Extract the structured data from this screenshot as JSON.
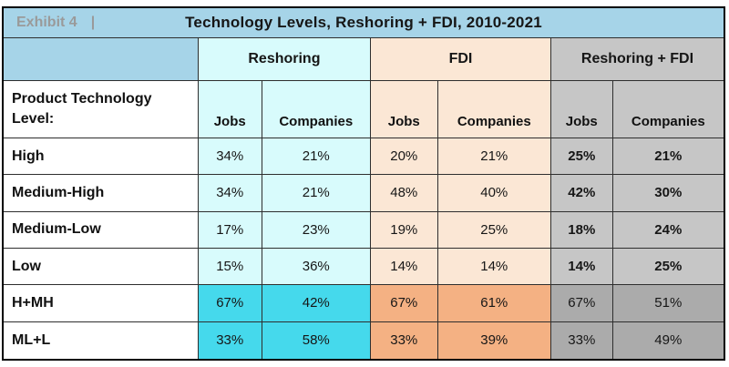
{
  "exhibit": {
    "label": "Exhibit 4",
    "separator": "|"
  },
  "title": "Technology Levels, Reshoring + FDI, 2010-2021",
  "groups": {
    "reshoring": "Reshoring",
    "fdi": "FDI",
    "combined": "Reshoring + FDI"
  },
  "row_header": "Product Technology Level:",
  "subheaders": [
    "Jobs",
    "Companies",
    "Jobs",
    "Companies",
    "Jobs",
    "Companies"
  ],
  "rows": [
    {
      "label": "High",
      "values": [
        "34%",
        "21%",
        "20%",
        "21%",
        "25%",
        "21%"
      ]
    },
    {
      "label": "Medium-High",
      "values": [
        "34%",
        "21%",
        "48%",
        "40%",
        "42%",
        "30%"
      ]
    },
    {
      "label": "Medium-Low",
      "values": [
        "17%",
        "23%",
        "19%",
        "25%",
        "18%",
        "24%"
      ]
    },
    {
      "label": "Low",
      "values": [
        "15%",
        "36%",
        "14%",
        "14%",
        "14%",
        "25%"
      ]
    },
    {
      "label": "H+MH",
      "values": [
        "67%",
        "42%",
        "67%",
        "61%",
        "67%",
        "51%"
      ]
    },
    {
      "label": "ML+L",
      "values": [
        "33%",
        "58%",
        "33%",
        "39%",
        "33%",
        "49%"
      ]
    }
  ],
  "colors": {
    "header_blue": "#a6d4e8",
    "exhibit_text_gray": "#9a9a9a",
    "reshoring_light_cyan": "#d8fbfc",
    "reshoring_bright_cyan": "#45d9ec",
    "fdi_light_peach": "#fbe7d5",
    "fdi_bright_orange": "#f4b183",
    "combined_light_gray": "#c6c6c6",
    "combined_dark_gray": "#ababab"
  },
  "chart_data": {
    "type": "table",
    "title": "Technology Levels, Reshoring + FDI, 2010-2021",
    "exhibit_label": "Exhibit 4",
    "row_header": "Product Technology Level:",
    "column_groups": [
      "Reshoring",
      "FDI",
      "Reshoring + FDI"
    ],
    "columns_per_group": [
      "Jobs",
      "Companies"
    ],
    "categories": [
      "High",
      "Medium-High",
      "Medium-Low",
      "Low",
      "H+MH",
      "ML+L"
    ],
    "unit": "%",
    "series": [
      {
        "name": "Reshoring Jobs",
        "values": [
          34,
          34,
          17,
          15,
          67,
          33
        ]
      },
      {
        "name": "Reshoring Companies",
        "values": [
          21,
          21,
          23,
          36,
          42,
          58
        ]
      },
      {
        "name": "FDI Jobs",
        "values": [
          20,
          48,
          19,
          14,
          67,
          33
        ]
      },
      {
        "name": "FDI Companies",
        "values": [
          21,
          40,
          25,
          14,
          61,
          39
        ]
      },
      {
        "name": "Reshoring + FDI Jobs",
        "values": [
          25,
          42,
          18,
          14,
          67,
          33
        ]
      },
      {
        "name": "Reshoring + FDI Companies",
        "values": [
          21,
          30,
          24,
          25,
          51,
          49
        ]
      }
    ]
  }
}
